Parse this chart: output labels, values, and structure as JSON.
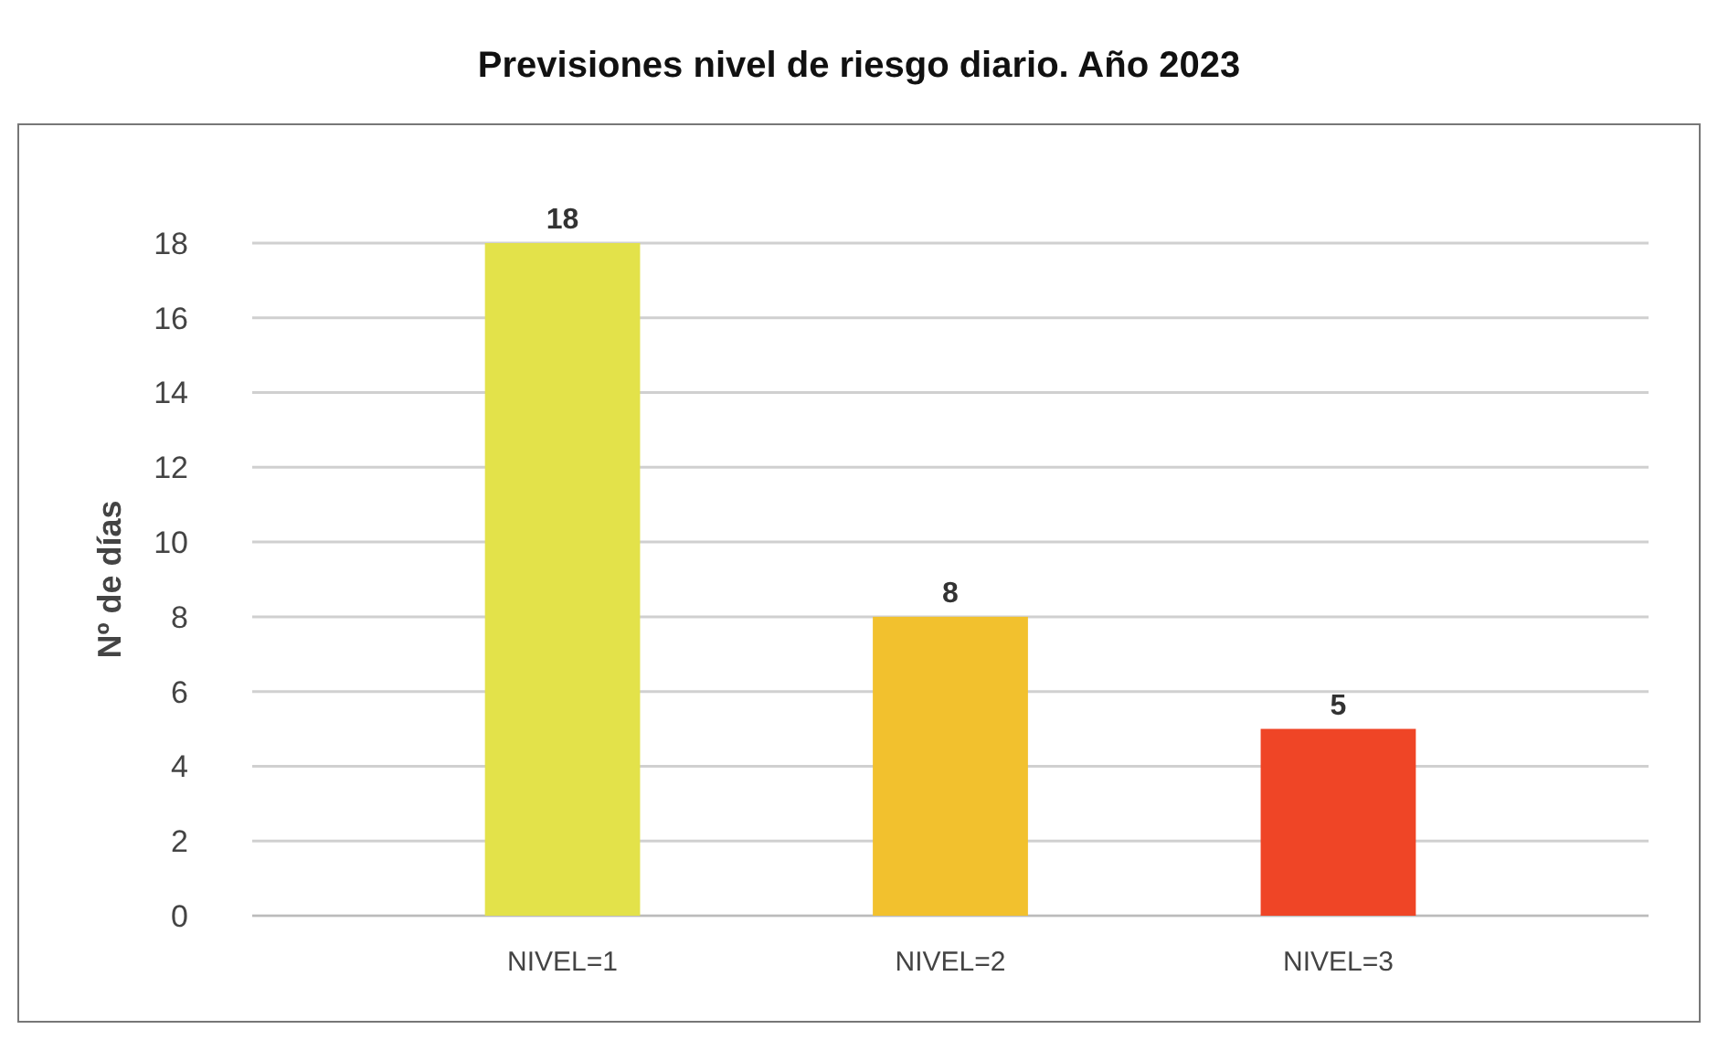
{
  "chart_data": {
    "type": "bar",
    "title": "Previsiones nivel de riesgo diario. Año 2023",
    "ylabel": "Nº de días",
    "categories": [
      "NIVEL=1",
      "NIVEL=2",
      "NIVEL=3"
    ],
    "values": [
      18,
      8,
      5
    ],
    "colors": [
      "#e3e24a",
      "#f2c12e",
      "#ef4526"
    ],
    "ylim": [
      0,
      18
    ],
    "yticks": [
      0,
      2,
      4,
      6,
      8,
      10,
      12,
      14,
      16,
      18
    ],
    "grid": "y",
    "data_labels": true
  }
}
